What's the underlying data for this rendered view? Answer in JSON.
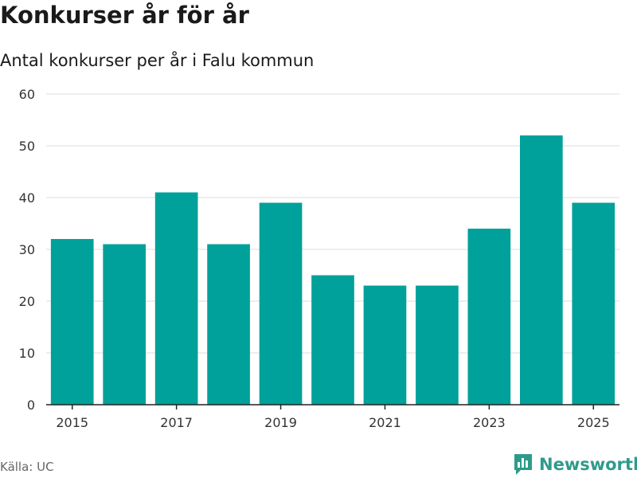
{
  "header": {
    "title": "Konkurser år för år",
    "subtitle": "Antal konkurser per år i Falu kommun"
  },
  "footer": {
    "source": "Källa: UC",
    "brand_name": "Newsworthy",
    "brand_icon": "bar-chart-logo-icon"
  },
  "colors": {
    "bar": "#00a19a",
    "brand": "#2e9b8a",
    "grid": "#dddddd",
    "axis": "#222222",
    "tick_text": "#333333"
  },
  "chart_data": {
    "type": "bar",
    "title": "Konkurser år för år",
    "subtitle": "Antal konkurser per år i Falu kommun",
    "xlabel": "",
    "ylabel": "",
    "categories": [
      "2015",
      "2016",
      "2017",
      "2018",
      "2019",
      "2020",
      "2021",
      "2022",
      "2023",
      "2024",
      "2025"
    ],
    "values": [
      32,
      31,
      41,
      31,
      39,
      25,
      23,
      23,
      34,
      52,
      39
    ],
    "ylim": [
      0,
      60
    ],
    "yticks": [
      0,
      10,
      20,
      30,
      40,
      50,
      60
    ],
    "xtick_labels": [
      "2015",
      "2017",
      "2019",
      "2021",
      "2023",
      "2025"
    ],
    "grid": true
  }
}
